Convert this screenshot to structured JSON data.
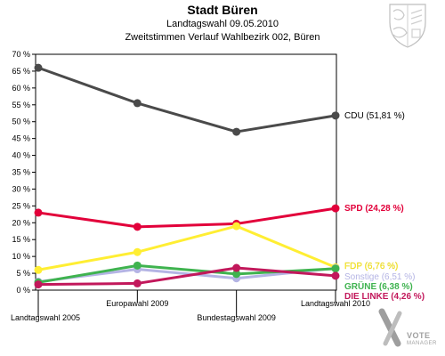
{
  "header": {
    "title": "Stadt Büren",
    "subtitle1": "Landtagswahl 09.05.2010",
    "subtitle2": "Zweitstimmen Verlauf Wahlbezirk 002, Büren"
  },
  "logo": {
    "name": "VOTE",
    "tagline": "MANAGER"
  },
  "emblem_icon": "state-coat-of-arms-icon",
  "chart_data": {
    "type": "line",
    "title": "Stadt Büren",
    "subtitle": "Landtagswahl 09.05.2010 — Zweitstimmen Verlauf Wahlbezirk 002, Büren",
    "categories": [
      "Landtagswahl 2005",
      "Europawahl 2009",
      "Bundestagswahl 2009",
      "Landtagswahl 2010"
    ],
    "ylim": [
      0,
      70
    ],
    "yticks": [
      0,
      5,
      10,
      15,
      20,
      25,
      30,
      35,
      40,
      45,
      50,
      55,
      60,
      65,
      70
    ],
    "ytick_suffix": " %",
    "grid": false,
    "series": [
      {
        "name": "CDU",
        "label": "CDU (51,81 %)",
        "color": "#4a4a4a",
        "values": [
          66,
          55.5,
          47,
          51.81
        ]
      },
      {
        "name": "SPD",
        "label": "SPD (24,28 %)",
        "color": "#e2003a",
        "values": [
          23,
          18.8,
          19.7,
          24.28
        ]
      },
      {
        "name": "FDP",
        "label": "FDP (6,76 %)",
        "color": "#ffee33",
        "values": [
          6,
          11.3,
          19,
          6.76
        ]
      },
      {
        "name": "Sonstige",
        "label": "Sonstige (6,51 %)",
        "color": "#b4b4e4",
        "values": [
          2.5,
          6.2,
          3.5,
          6.51
        ]
      },
      {
        "name": "GRÜNE",
        "label": "GRÜNE (6,38 %)",
        "color": "#3fb34f",
        "values": [
          2.3,
          7.3,
          4.8,
          6.38
        ]
      },
      {
        "name": "DIE LINKE",
        "label": "DIE LINKE (4,26 %)",
        "color": "#c2185b",
        "values": [
          1.7,
          2,
          6.6,
          4.26
        ]
      }
    ]
  }
}
